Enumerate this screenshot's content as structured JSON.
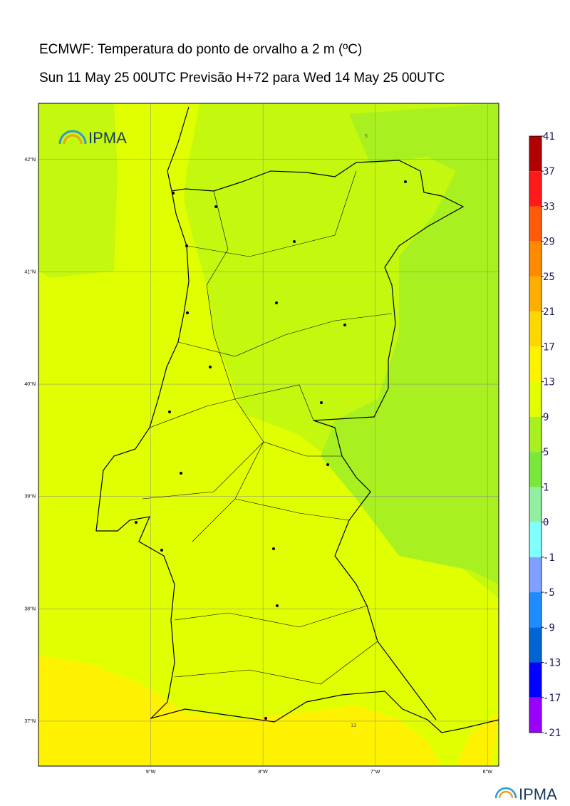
{
  "header": {
    "title": "ECMWF: Temperatura do ponto de orvalho a 2 m (ºC)",
    "subtitle": "Sun 11 May 25 00UTC Previsão H+72 para Wed 14 May 25 00UTC"
  },
  "map": {
    "xlim": [
      -10.0,
      -5.9
    ],
    "ylim": [
      36.6,
      42.5
    ],
    "lon_ticks": [
      {
        "value": -9,
        "label": "9°W"
      },
      {
        "value": -8,
        "label": "8°W"
      },
      {
        "value": -7,
        "label": "7°W"
      },
      {
        "value": -6,
        "label": "6°W"
      }
    ],
    "lat_ticks": [
      {
        "value": 42,
        "label": "42°N"
      },
      {
        "value": 41,
        "label": "41°N"
      },
      {
        "value": 40,
        "label": "40°N"
      },
      {
        "value": 39,
        "label": "39°N"
      },
      {
        "value": 38,
        "label": "38°N"
      },
      {
        "value": 37,
        "label": "37°N"
      }
    ],
    "contour_labels": [
      "5",
      "13"
    ],
    "logo": "IPMA"
  },
  "colorbar": {
    "ticks": [
      41,
      37,
      33,
      29,
      25,
      21,
      17,
      13,
      9,
      5,
      1,
      0,
      -1,
      -5,
      -9,
      -13,
      -17,
      -21
    ],
    "colors": [
      "#b00000",
      "#ff1a1a",
      "#ff5a0a",
      "#ff8a00",
      "#ffad00",
      "#ffd700",
      "#fff200",
      "#e0ff00",
      "#a8f020",
      "#78e83a",
      "#90f0a0",
      "#80ffff",
      "#7fa0ff",
      "#1e8cff",
      "#0064d2",
      "#0000ff",
      "#9900ff"
    ]
  },
  "footer": {
    "logo": "IPMA"
  }
}
